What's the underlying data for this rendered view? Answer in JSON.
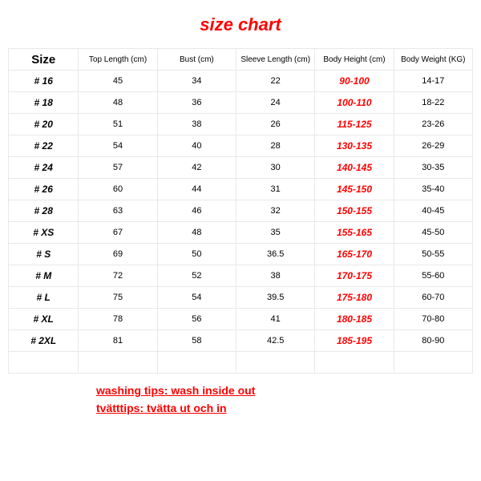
{
  "title": "size chart",
  "columns": [
    "Size",
    "Top Length (cm)",
    "Bust (cm)",
    "Sleeve Length (cm)",
    "Body Height (cm)",
    "Body Weight (KG)"
  ],
  "rows": [
    {
      "size": "# 16",
      "top": "45",
      "bust": "34",
      "sleeve": "22",
      "bh": "90-100",
      "bw": "14-17"
    },
    {
      "size": "# 18",
      "top": "48",
      "bust": "36",
      "sleeve": "24",
      "bh": "100-110",
      "bw": "18-22"
    },
    {
      "size": "# 20",
      "top": "51",
      "bust": "38",
      "sleeve": "26",
      "bh": "115-125",
      "bw": "23-26"
    },
    {
      "size": "# 22",
      "top": "54",
      "bust": "40",
      "sleeve": "28",
      "bh": "130-135",
      "bw": "26-29"
    },
    {
      "size": "# 24",
      "top": "57",
      "bust": "42",
      "sleeve": "30",
      "bh": "140-145",
      "bw": "30-35"
    },
    {
      "size": "# 26",
      "top": "60",
      "bust": "44",
      "sleeve": "31",
      "bh": "145-150",
      "bw": "35-40"
    },
    {
      "size": "# 28",
      "top": "63",
      "bust": "46",
      "sleeve": "32",
      "bh": "150-155",
      "bw": "40-45"
    },
    {
      "size": "# XS",
      "top": "67",
      "bust": "48",
      "sleeve": "35",
      "bh": "155-165",
      "bw": "45-50"
    },
    {
      "size": "# S",
      "top": "69",
      "bust": "50",
      "sleeve": "36.5",
      "bh": "165-170",
      "bw": "50-55"
    },
    {
      "size": "# M",
      "top": "72",
      "bust": "52",
      "sleeve": "38",
      "bh": "170-175",
      "bw": "55-60"
    },
    {
      "size": "# L",
      "top": "75",
      "bust": "54",
      "sleeve": "39.5",
      "bh": "175-180",
      "bw": "60-70"
    },
    {
      "size": "# XL",
      "top": "78",
      "bust": "56",
      "sleeve": "41",
      "bh": "180-185",
      "bw": "70-80"
    },
    {
      "size": "# 2XL",
      "top": "81",
      "bust": "58",
      "sleeve": "42.5",
      "bh": "185-195",
      "bw": "80-90"
    }
  ],
  "tips": {
    "line1": "washing tips: wash inside out",
    "line2": "tvätttips: tvätta ut och in"
  },
  "colors": {
    "accent": "#ff0000",
    "border": "#e8e8e8",
    "background": "#ffffff",
    "text": "#000000"
  },
  "fontsizes": {
    "title": 22,
    "size_header": 15,
    "col_header": 10,
    "cell": 11,
    "size_cell": 12,
    "tips": 14
  }
}
